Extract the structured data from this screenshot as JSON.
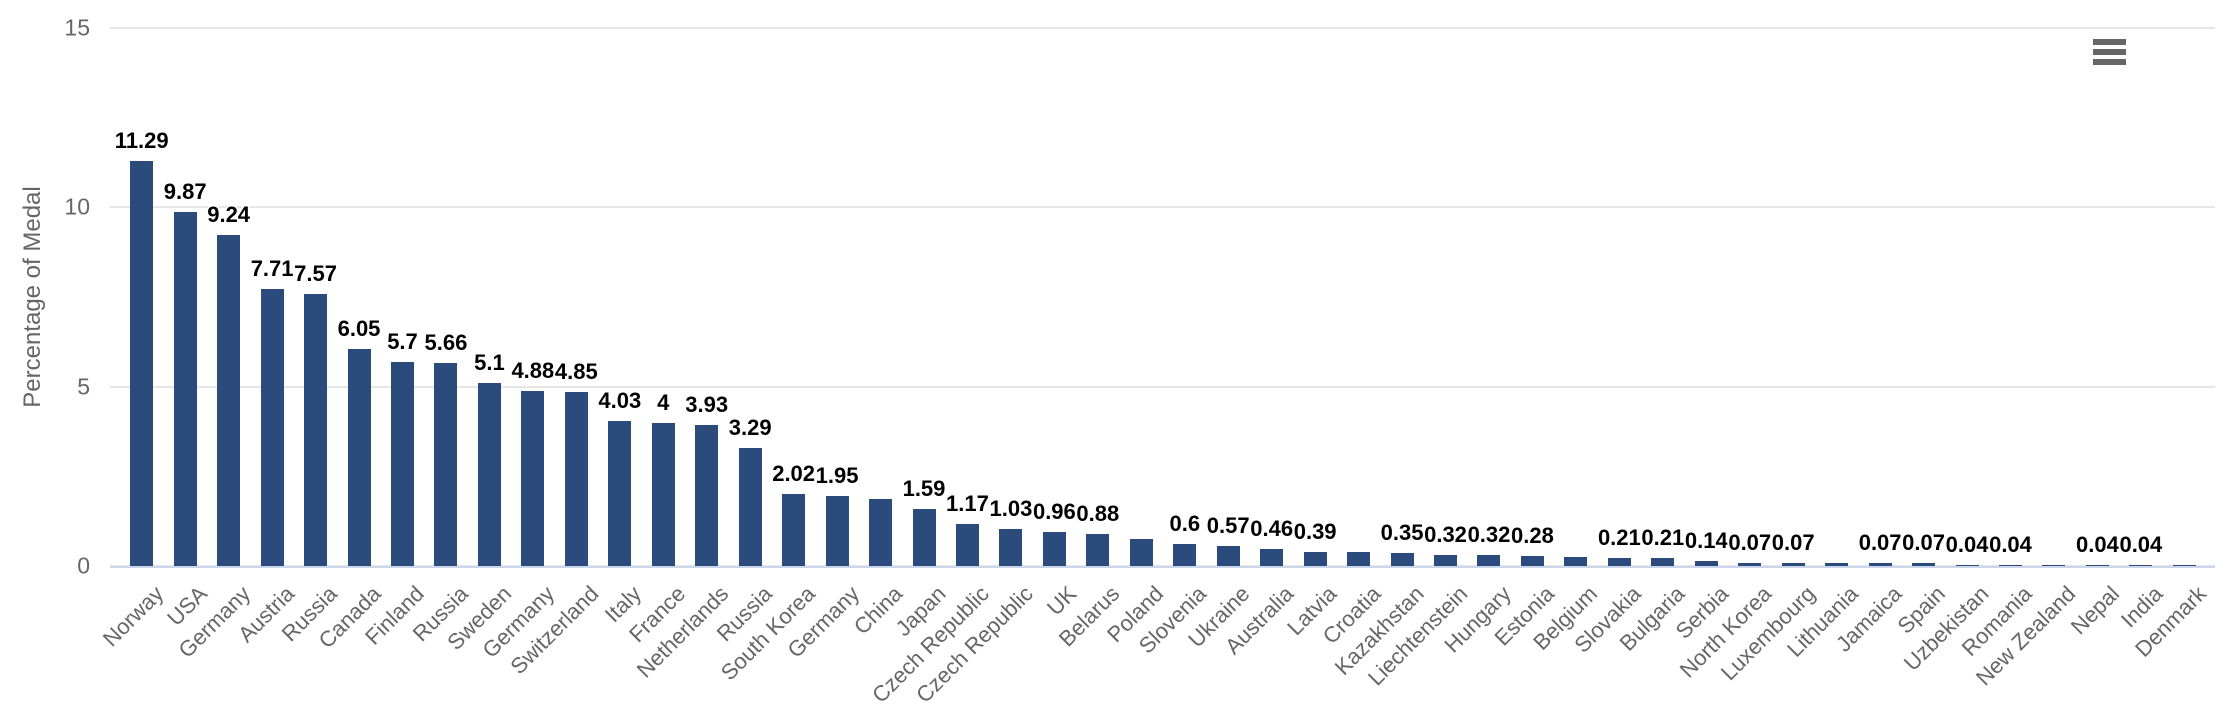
{
  "chart_data": {
    "type": "bar",
    "title": "",
    "xlabel": "",
    "ylabel": "Percentage of Medal",
    "ylim": [
      0,
      15
    ],
    "yticks": [
      0,
      5,
      10,
      15
    ],
    "ytick_labels": [
      "0",
      "5",
      "10",
      "15"
    ],
    "grid": "horizontal gridlines on",
    "legend": "none",
    "bar_color": "#2b4b7c",
    "grid_color": "#e6e6e6",
    "axis_line_color": "#ccd6eb",
    "axis_text_color": "#666666",
    "categories": [
      "Norway",
      "USA",
      "Germany",
      "Austria",
      "Russia",
      "Canada",
      "Finland",
      "Russia",
      "Sweden",
      "Germany",
      "Switzerland",
      "Italy",
      "France",
      "Netherlands",
      "Russia",
      "South Korea",
      "Germany",
      "China",
      "Japan",
      "Czech Republic",
      "Czech Republic",
      "UK",
      "Belarus",
      "Poland",
      "Slovenia",
      "Ukraine",
      "Australia",
      "Latvia",
      "Croatia",
      "Kazakhstan",
      "Liechtenstein",
      "Hungary",
      "Estonia",
      "Belgium",
      "Slovakia",
      "Bulgaria",
      "Serbia",
      "North Korea",
      "Luxembourg",
      "Lithuania",
      "Jamaica",
      "Spain",
      "Uzbekistan",
      "Romania",
      "New Zealand",
      "Nepal",
      "India",
      "Denmark"
    ],
    "values": [
      11.29,
      9.87,
      9.24,
      7.71,
      7.57,
      6.05,
      5.7,
      5.66,
      5.1,
      4.88,
      4.85,
      4.03,
      4,
      3.93,
      3.29,
      2.02,
      1.95,
      1.86,
      1.59,
      1.17,
      1.03,
      0.96,
      0.88,
      0.75,
      0.6,
      0.57,
      0.46,
      0.39,
      0.38,
      0.35,
      0.32,
      0.32,
      0.28,
      0.25,
      0.21,
      0.21,
      0.14,
      0.07,
      0.07,
      0.07,
      0.07,
      0.07,
      0.04,
      0.04,
      0.04,
      0.04,
      0.04,
      0.04
    ],
    "data_labels": [
      "11.29",
      "9.87",
      "9.24",
      "7.71",
      "7.57",
      "6.05",
      "5.7",
      "5.66",
      "5.1",
      "4.88",
      "4.85",
      "4.03",
      "4",
      "3.93",
      "3.29",
      "2.02",
      "1.95",
      null,
      "1.59",
      "1.17",
      "1.03",
      "0.96",
      "0.88",
      null,
      "0.6",
      "0.57",
      "0.46",
      "0.39",
      null,
      "0.35",
      "0.32",
      "0.32",
      "0.28",
      null,
      "0.21",
      "0.21",
      "0.14",
      "0.07",
      "0.07",
      null,
      "0.07",
      "0.07",
      "0.04",
      "0.04",
      null,
      "0.04",
      "0.04",
      null
    ]
  },
  "icons": {
    "context_menu": "hamburger-menu-icon"
  }
}
